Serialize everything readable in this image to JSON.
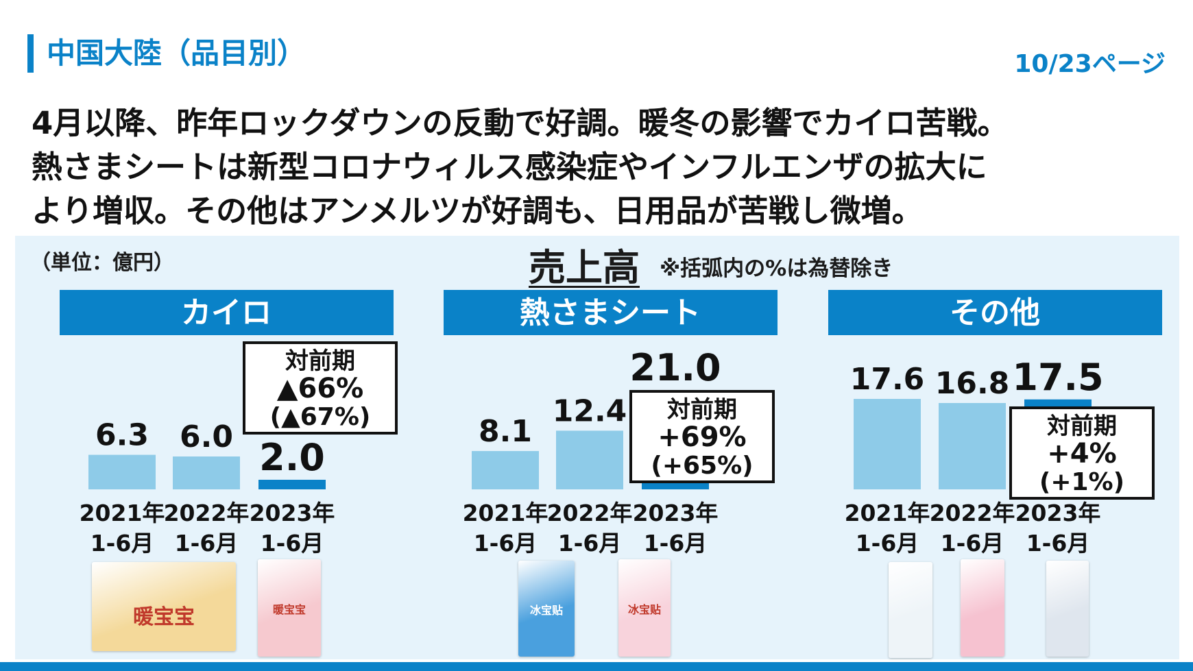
{
  "header": {
    "title": "中国大陸（品目別）",
    "page": "10/23ページ"
  },
  "summary": [
    "4月以降、昨年ロックダウンの反動で好調。暖冬の影響でカイロ苦戦。",
    "熱さまシートは新型コロナウィルス感染症やインフルエンザの拡大に",
    "より増収。その他はアンメルツが好調も、日用品が苦戦し微増。"
  ],
  "panel": {
    "unit": "（単位：億円）",
    "title": "売上高",
    "note": "※括弧内の%は為替除き"
  },
  "colors": {
    "accent": "#0a82c8",
    "bar_past": "#8ecbe8",
    "bar_current": "#0a82c8",
    "panel_bg": "#e6f3fb"
  },
  "chart_data": [
    {
      "type": "bar",
      "title": "カイロ",
      "categories": [
        [
          "2021年",
          "1-6月"
        ],
        [
          "2022年",
          "1-6月"
        ],
        [
          "2023年",
          "1-6月"
        ]
      ],
      "values": [
        6.3,
        6.0,
        2.0
      ],
      "value_labels": [
        "6.3",
        "6.0",
        "2.0"
      ],
      "annotation": [
        "対前期",
        "▲66%",
        "(▲67%)"
      ]
    },
    {
      "type": "bar",
      "title": "熱さまシート",
      "categories": [
        [
          "2021年",
          "1-6月"
        ],
        [
          "2022年",
          "1-6月"
        ],
        [
          "2023年",
          "1-6月"
        ]
      ],
      "values": [
        8.1,
        12.4,
        21.0
      ],
      "value_labels": [
        "8.1",
        "12.4",
        "21.0"
      ],
      "annotation": [
        "対前期",
        "+69%",
        "(+65%)"
      ]
    },
    {
      "type": "bar",
      "title": "その他",
      "categories": [
        [
          "2021年",
          "1-6月"
        ],
        [
          "2022年",
          "1-6月"
        ],
        [
          "2023年",
          "1-6月"
        ]
      ],
      "values": [
        17.6,
        16.8,
        17.5
      ],
      "value_labels": [
        "17.6",
        "16.8",
        "17.5"
      ],
      "annotation": [
        "対前期",
        "+4%",
        "(+1%)"
      ]
    }
  ],
  "products": [
    {
      "name": "kairo-pack-large",
      "label": "暖宝宝",
      "bg": "#f4d99a",
      "fg": "#c0392b"
    },
    {
      "name": "kairo-pack-small",
      "label": "暖宝宝",
      "bg": "#f6c9cf",
      "fg": "#c0392b"
    },
    {
      "name": "netsusama-pack-kids",
      "label": "冰宝贴",
      "bg": "#4aa0de",
      "fg": "#ffffff"
    },
    {
      "name": "netsusama-pack-baby",
      "label": "冰宝贴",
      "bg": "#f8d3dc",
      "fg": "#c0392b"
    },
    {
      "name": "other-product-1",
      "label": "",
      "bg": "#eef4f8",
      "fg": "#333333"
    },
    {
      "name": "other-product-2",
      "label": "",
      "bg": "#f6c2d0",
      "fg": "#333333"
    },
    {
      "name": "other-product-3",
      "label": "",
      "bg": "#dfe6ee",
      "fg": "#333333"
    }
  ]
}
